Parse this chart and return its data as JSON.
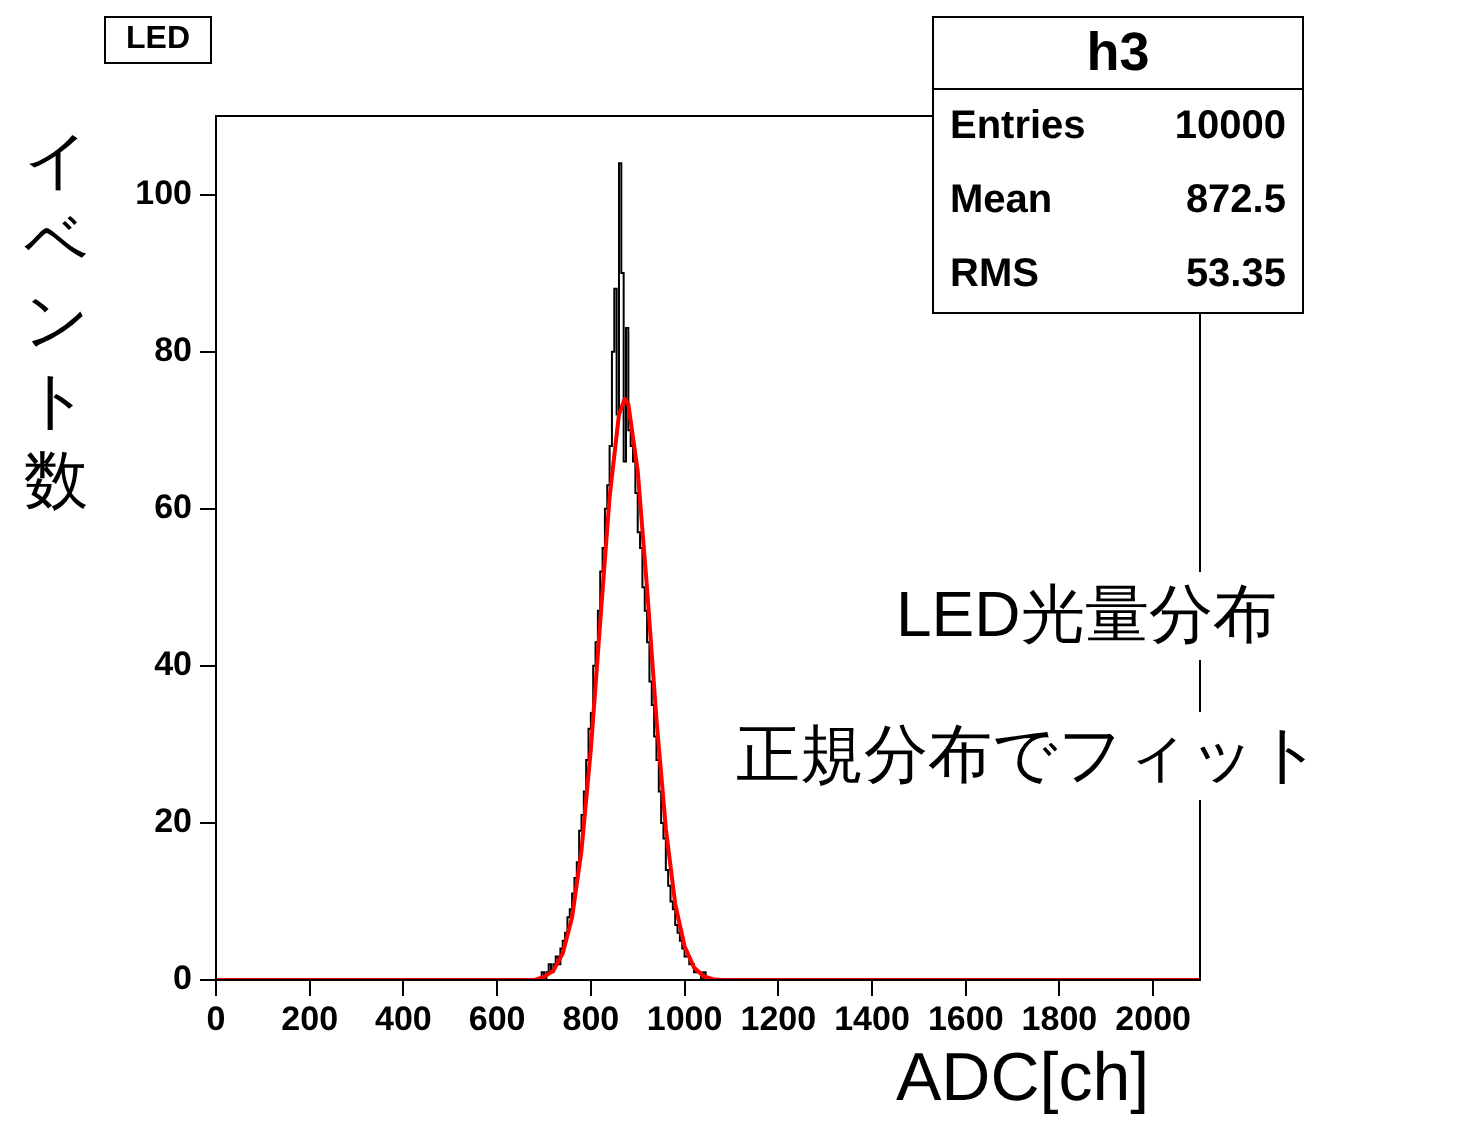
{
  "chart_data": {
    "type": "histogram",
    "xlabel": "ADC[ch]",
    "ylabel": "イベント数",
    "bins": [
      0,
      690,
      695,
      700,
      705,
      710,
      715,
      720,
      725,
      730,
      735,
      740,
      745,
      750,
      755,
      760,
      765,
      770,
      775,
      780,
      785,
      790,
      795,
      800,
      805,
      810,
      815,
      820,
      825,
      830,
      835,
      840,
      845,
      850,
      855,
      860,
      865,
      870,
      875,
      880,
      885,
      890,
      895,
      900,
      905,
      910,
      915,
      920,
      925,
      930,
      935,
      940,
      945,
      950,
      955,
      960,
      965,
      970,
      975,
      980,
      985,
      990,
      995,
      1000,
      1005,
      1010,
      1015,
      1020,
      1025,
      1030,
      1035,
      1040,
      1045,
      1050,
      1055,
      1060,
      2100
    ],
    "values": [
      0,
      0,
      0,
      1,
      0,
      1,
      2,
      1,
      2,
      3,
      2,
      4,
      5,
      6,
      8,
      9,
      11,
      13,
      15,
      19,
      21,
      24,
      28,
      32,
      34,
      40,
      43,
      47,
      52,
      55,
      60,
      63,
      68,
      80,
      88,
      72,
      104,
      90,
      66,
      83,
      70,
      68,
      66,
      62,
      57,
      55,
      50,
      47,
      43,
      38,
      35,
      31,
      28,
      24,
      20,
      18,
      14,
      12,
      10,
      9,
      7,
      6,
      5,
      4,
      3,
      3,
      2,
      2,
      1,
      1,
      1,
      0,
      1,
      0,
      0,
      0
    ],
    "color": "#000000",
    "series": [
      {
        "type": "line",
        "color": "#ff0000",
        "x": [
          0,
          680,
          700,
          720,
          740,
          760,
          780,
          800,
          820,
          840,
          860,
          872.5,
          880,
          900,
          920,
          940,
          960,
          980,
          1000,
          1020,
          1040,
          1060,
          1080,
          2100
        ],
        "values": [
          0,
          0,
          0.4,
          1.2,
          3.4,
          8,
          16.5,
          29.4,
          45.6,
          61.5,
          72,
          74,
          73.3,
          64.8,
          49.8,
          33.2,
          19.3,
          9.7,
          4.3,
          1.6,
          0.5,
          0.1,
          0,
          0
        ]
      }
    ],
    "xlim": [
      0,
      2100
    ],
    "xticks": [
      0,
      200,
      400,
      600,
      800,
      1000,
      1200,
      1400,
      1600,
      1800,
      2000
    ],
    "ylim": [
      0,
      110
    ],
    "yticks": [
      0,
      20,
      40,
      60,
      80,
      100
    ],
    "grid": false,
    "legend": false,
    "annotations": [
      "LED",
      "h3",
      "Entries",
      "10000",
      "Mean",
      "872.5",
      "RMS",
      "53.35",
      "LED光量分布",
      "正規分布でフィット"
    ]
  }
}
